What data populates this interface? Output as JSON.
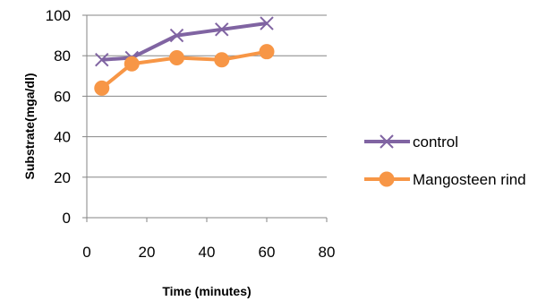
{
  "chart_data": {
    "type": "line",
    "xlabel": "Time (minutes)",
    "ylabel": "Substrate(mga/dl)",
    "xlim": [
      0,
      80
    ],
    "ylim": [
      0,
      100
    ],
    "x_ticks": [
      0,
      20,
      40,
      60,
      80
    ],
    "y_ticks": [
      0,
      20,
      40,
      60,
      80,
      100
    ],
    "x_tick_labels": [
      "0",
      "20",
      "40",
      "60",
      "80"
    ],
    "y_tick_labels": [
      "0",
      "20",
      "40",
      "60",
      "80",
      "100"
    ],
    "grid": "horizontal",
    "legend_position": "right",
    "series": [
      {
        "name": "control",
        "marker": "x",
        "color": "#8064A2",
        "x": [
          5,
          15,
          30,
          45,
          60
        ],
        "y": [
          78,
          79,
          90,
          93,
          96
        ]
      },
      {
        "name": "Mangosteen rind",
        "marker": "circle",
        "color": "#F79646",
        "x": [
          5,
          15,
          30,
          45,
          60
        ],
        "y": [
          64,
          76,
          79,
          78,
          82
        ]
      }
    ]
  }
}
